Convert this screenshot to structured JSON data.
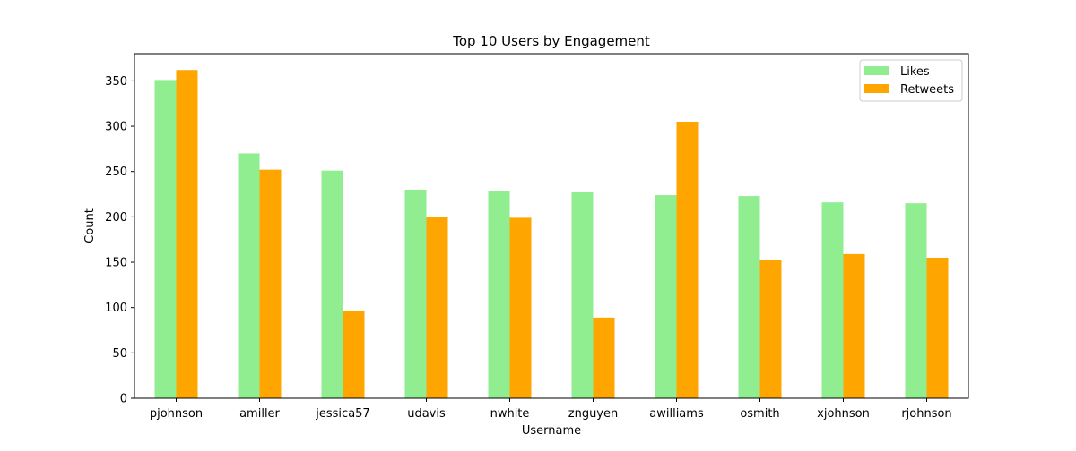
{
  "chart_data": {
    "type": "bar",
    "title": "Top 10 Users by Engagement",
    "xlabel": "Username",
    "ylabel": "Count",
    "categories": [
      "pjohnson",
      "amiller",
      "jessica57",
      "udavis",
      "nwhite",
      "znguyen",
      "awilliams",
      "osmith",
      "xjohnson",
      "rjohnson"
    ],
    "series": [
      {
        "name": "Likes",
        "color": "#90ee90",
        "values": [
          351,
          270,
          251,
          230,
          229,
          227,
          224,
          223,
          216,
          215
        ]
      },
      {
        "name": "Retweets",
        "color": "#ffa500",
        "values": [
          362,
          252,
          96,
          200,
          199,
          89,
          305,
          153,
          159,
          155
        ]
      }
    ],
    "ylim": [
      0,
      380
    ],
    "yticks": [
      0,
      50,
      100,
      150,
      200,
      250,
      300,
      350
    ],
    "grid": false,
    "legend_position": "top-right"
  }
}
